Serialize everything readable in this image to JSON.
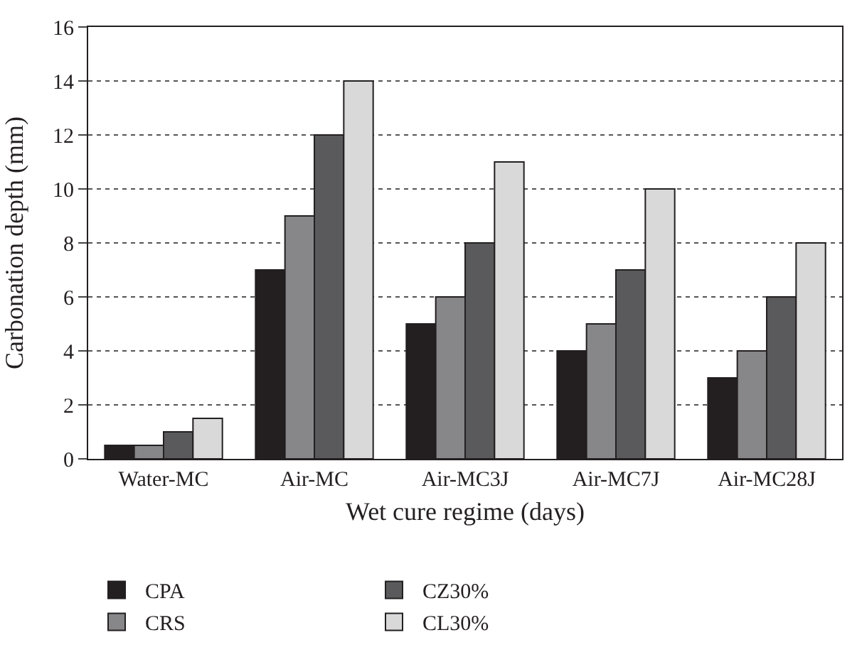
{
  "chart_data": {
    "type": "bar",
    "xlabel": "Wet cure regime (days)",
    "ylabel": "Carbonation depth (mm)",
    "categories": [
      "Water-MC",
      "Air-MC",
      "Air-MC3J",
      "Air-MC7J",
      "Air-MC28J"
    ],
    "series": [
      {
        "name": "CPA",
        "color": "#231f20",
        "values": [
          0.5,
          7,
          5,
          4,
          3
        ]
      },
      {
        "name": "CRS",
        "color": "#87878a",
        "values": [
          0.5,
          9,
          6,
          5,
          4
        ]
      },
      {
        "name": "CZ30%",
        "color": "#5a5a5c",
        "values": [
          1,
          12,
          8,
          7,
          6
        ]
      },
      {
        "name": "CL30%",
        "color": "#d9d9da",
        "values": [
          1.5,
          14,
          11,
          10,
          8
        ]
      }
    ],
    "ylim": [
      0,
      16
    ],
    "yticks": [
      0,
      2,
      4,
      6,
      8,
      10,
      12,
      14,
      16
    ],
    "grid": "y",
    "legend": "bottom"
  }
}
